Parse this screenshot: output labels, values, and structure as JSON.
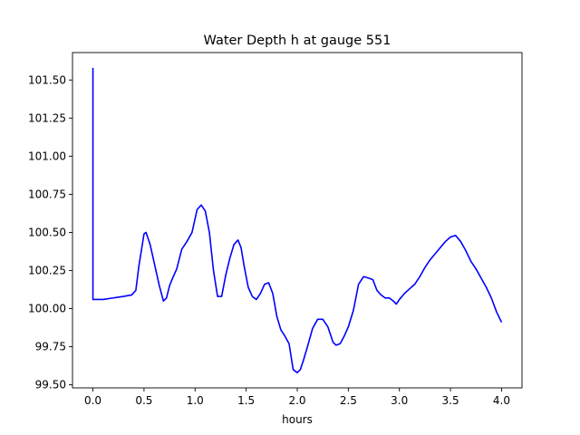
{
  "chart_data": {
    "type": "line",
    "title": "Water Depth h at gauge 551",
    "xlabel": "hours",
    "ylabel": "",
    "xlim": [
      -0.2,
      4.2
    ],
    "ylim": [
      99.48,
      101.68
    ],
    "xticks": [
      0.0,
      0.5,
      1.0,
      1.5,
      2.0,
      2.5,
      3.0,
      3.5,
      4.0
    ],
    "xtick_labels": [
      "0.0",
      "0.5",
      "1.0",
      "1.5",
      "2.0",
      "2.5",
      "3.0",
      "3.5",
      "4.0"
    ],
    "yticks": [
      99.5,
      99.75,
      100.0,
      100.25,
      100.5,
      100.75,
      101.0,
      101.25,
      101.5
    ],
    "ytick_labels": [
      "99.50",
      "99.75",
      "100.00",
      "100.25",
      "100.50",
      "100.75",
      "101.00",
      "101.25",
      "101.50"
    ],
    "grid": false,
    "series": [
      {
        "color": "#0000ff",
        "x": [
          0.0,
          0.0,
          0.005,
          0.1,
          0.2,
          0.3,
          0.38,
          0.42,
          0.45,
          0.5,
          0.52,
          0.56,
          0.6,
          0.65,
          0.69,
          0.72,
          0.75,
          0.78,
          0.82,
          0.87,
          0.92,
          0.97,
          1.02,
          1.06,
          1.1,
          1.14,
          1.18,
          1.22,
          1.26,
          1.3,
          1.34,
          1.38,
          1.42,
          1.45,
          1.48,
          1.52,
          1.56,
          1.6,
          1.64,
          1.68,
          1.72,
          1.76,
          1.8,
          1.84,
          1.87,
          1.92,
          1.96,
          2.0,
          2.03,
          2.06,
          2.1,
          2.15,
          2.2,
          2.25,
          2.3,
          2.35,
          2.38,
          2.42,
          2.46,
          2.5,
          2.55,
          2.6,
          2.65,
          2.7,
          2.74,
          2.78,
          2.82,
          2.86,
          2.9,
          2.94,
          2.97,
          3.0,
          3.05,
          3.1,
          3.15,
          3.2,
          3.25,
          3.3,
          3.35,
          3.4,
          3.45,
          3.5,
          3.55,
          3.6,
          3.65,
          3.7,
          3.75,
          3.8,
          3.85,
          3.9,
          3.95,
          4.0
        ],
        "y": [
          101.58,
          100.06,
          100.06,
          100.06,
          100.07,
          100.08,
          100.09,
          100.12,
          100.28,
          100.49,
          100.5,
          100.42,
          100.3,
          100.15,
          100.05,
          100.07,
          100.15,
          100.2,
          100.26,
          100.39,
          100.44,
          100.5,
          100.65,
          100.68,
          100.64,
          100.5,
          100.25,
          100.08,
          100.08,
          100.22,
          100.33,
          100.42,
          100.45,
          100.4,
          100.28,
          100.14,
          100.08,
          100.06,
          100.1,
          100.16,
          100.17,
          100.1,
          99.95,
          99.86,
          99.83,
          99.77,
          99.6,
          99.58,
          99.6,
          99.66,
          99.75,
          99.87,
          99.93,
          99.93,
          99.88,
          99.78,
          99.76,
          99.77,
          99.82,
          99.88,
          99.99,
          100.16,
          100.21,
          100.2,
          100.19,
          100.12,
          100.09,
          100.07,
          100.07,
          100.05,
          100.03,
          100.06,
          100.1,
          100.13,
          100.16,
          100.21,
          100.27,
          100.32,
          100.36,
          100.4,
          100.44,
          100.47,
          100.48,
          100.44,
          100.38,
          100.31,
          100.26,
          100.2,
          100.14,
          100.07,
          99.98,
          99.91
        ]
      }
    ]
  }
}
